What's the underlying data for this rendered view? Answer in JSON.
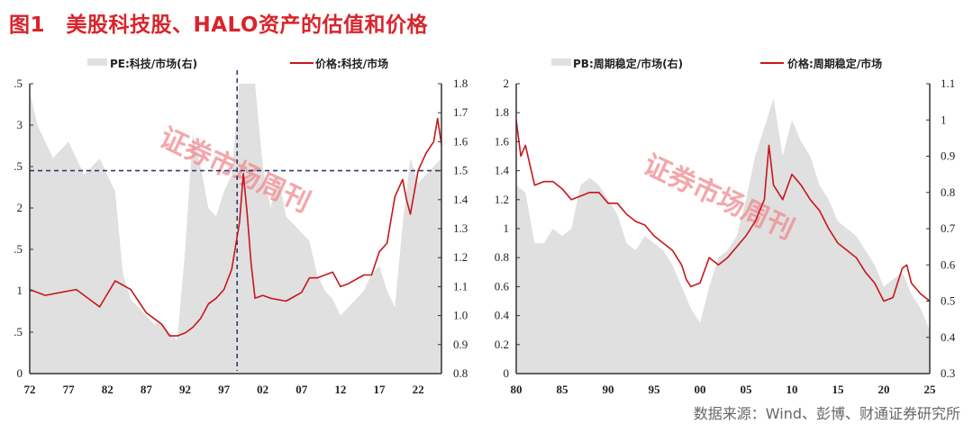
{
  "figure": {
    "title": "图1　美股科技股、HALO资产的估值和价格",
    "source": "数据来源：Wind、彭博、财通证券研究所",
    "watermark": "证券市场周刊"
  },
  "colors": {
    "title": "#d9242b",
    "price_line": "#c8161d",
    "valuation_area": "#e0e0e0",
    "reference_line": "#2d3e6b",
    "watermark": "#f08a8f"
  },
  "chart_data": [
    {
      "type": "area+line",
      "title": "美股科技股",
      "legend": [
        "PE:科技/市场(右)",
        "价格:科技/市场"
      ],
      "legend_position": "top",
      "xlabel": "",
      "x_ticks": [
        "72",
        "77",
        "82",
        "87",
        "92",
        "97",
        "02",
        "07",
        "12",
        "17",
        "22"
      ],
      "left_axis": {
        "ticks": [
          ".5",
          "3",
          ".5",
          "2",
          ".5",
          "1",
          ".5",
          "0"
        ],
        "full_values": [
          3.5,
          3,
          2.5,
          2,
          1.5,
          1,
          0.5,
          0
        ],
        "ylim": [
          0,
          3.5
        ],
        "note": "labels truncated at left edge"
      },
      "right_axis": {
        "ticks": [
          "1.8",
          "1.7",
          "1.6",
          "1.5",
          "1.4",
          "1.3",
          "1.2",
          "1.1",
          "1.0",
          "0.9",
          "0.8"
        ],
        "ylim": [
          0.8,
          1.8
        ]
      },
      "reference_lines": {
        "horizontal_right_axis": 1.5,
        "vertical_x": "1998/99"
      },
      "series": [
        {
          "name": "价格:科技/市场",
          "axis": "right",
          "x": [
            1972,
            1974,
            1976,
            1978,
            1980,
            1981,
            1983,
            1985,
            1986,
            1987,
            1988,
            1989,
            1990,
            1991,
            1992,
            1993,
            1994,
            1995,
            1996,
            1997,
            1998,
            1999,
            1999.5,
            2000,
            2000.5,
            2001,
            2002,
            2003,
            2005,
            2007,
            2008,
            2009,
            2010,
            2011,
            2012,
            2013,
            2015,
            2016,
            2017,
            2018,
            2019,
            2020,
            2020.5,
            2021,
            2022,
            2023,
            2024,
            2024.5,
            2025
          ],
          "values": [
            1.09,
            1.07,
            1.08,
            1.09,
            1.05,
            1.03,
            1.12,
            1.09,
            1.05,
            1.01,
            0.99,
            0.97,
            0.93,
            0.93,
            0.94,
            0.96,
            0.99,
            1.04,
            1.06,
            1.09,
            1.16,
            1.32,
            1.49,
            1.35,
            1.18,
            1.06,
            1.07,
            1.06,
            1.05,
            1.08,
            1.13,
            1.13,
            1.14,
            1.15,
            1.1,
            1.11,
            1.14,
            1.14,
            1.22,
            1.25,
            1.41,
            1.47,
            1.4,
            1.35,
            1.5,
            1.56,
            1.6,
            1.68,
            1.59
          ]
        },
        {
          "name": "PE:科技/市场(右)",
          "axis": "left",
          "x": [
            1972,
            1973,
            1975,
            1977,
            1979,
            1981,
            1983,
            1984,
            1985,
            1986,
            1987,
            1988,
            1989,
            1990,
            1991,
            1992,
            1993,
            1994,
            1995,
            1996,
            1997,
            1998,
            1999,
            2000,
            2001,
            2002,
            2003,
            2004,
            2005,
            2006,
            2007,
            2008,
            2009,
            2010,
            2011,
            2012,
            2013,
            2014,
            2015,
            2016,
            2017,
            2018,
            2019,
            2020,
            2021,
            2022,
            2023,
            2024,
            2025
          ],
          "values": [
            3.4,
            3.0,
            2.6,
            2.8,
            2.4,
            2.6,
            2.2,
            1.2,
            0.9,
            0.8,
            0.7,
            0.6,
            0.6,
            0.5,
            0.4,
            1.5,
            2.9,
            2.5,
            2.0,
            1.9,
            2.2,
            2.4,
            3.5,
            3.5,
            3.5,
            2.5,
            2.0,
            2.4,
            1.9,
            1.8,
            1.7,
            1.6,
            1.2,
            1.0,
            0.9,
            0.7,
            0.8,
            0.9,
            1.0,
            1.2,
            1.3,
            1.0,
            0.8,
            1.8,
            2.6,
            2.3,
            2.4,
            2.5,
            2.6
          ]
        }
      ]
    },
    {
      "type": "area+line",
      "title": "HALO资产(周期稳定)",
      "legend": [
        "PB:周期稳定/市场(右)",
        "价格:周期稳定/市场"
      ],
      "legend_position": "top",
      "xlabel": "",
      "x_ticks": [
        "80",
        "85",
        "90",
        "95",
        "00",
        "05",
        "10",
        "15",
        "20",
        "25"
      ],
      "left_axis": {
        "ticks": [
          "2",
          "1.8",
          "1.6",
          "1.4",
          "1.2",
          "1",
          "0.8",
          "0.6",
          "0.4",
          "0.2",
          "0"
        ],
        "ylim": [
          0,
          2
        ]
      },
      "right_axis": {
        "ticks": [
          "1.1",
          "1",
          "0.9",
          "0.8",
          "0.7",
          "0.6",
          "0.5",
          "0.4",
          "0.3"
        ],
        "ylim": [
          0.3,
          1.1
        ]
      },
      "series": [
        {
          "name": "价格:周期稳定/市场",
          "axis": "right",
          "x": [
            1980,
            1980.5,
            1981,
            1982,
            1983,
            1984,
            1985,
            1986,
            1987,
            1988,
            1989,
            1990,
            1991,
            1992,
            1993,
            1994,
            1995,
            1996,
            1997,
            1998,
            1998.5,
            1999,
            2000,
            2001,
            2002,
            2003,
            2004,
            2005,
            2006,
            2007,
            2007.5,
            2008,
            2009,
            2010,
            2011,
            2012,
            2013,
            2014,
            2015,
            2016,
            2017,
            2018,
            2019,
            2020,
            2021,
            2022,
            2022.5,
            2023,
            2024,
            2025
          ],
          "values": [
            1.0,
            0.9,
            0.93,
            0.82,
            0.83,
            0.83,
            0.81,
            0.78,
            0.79,
            0.8,
            0.8,
            0.77,
            0.77,
            0.74,
            0.72,
            0.71,
            0.68,
            0.66,
            0.64,
            0.6,
            0.56,
            0.54,
            0.55,
            0.62,
            0.6,
            0.62,
            0.65,
            0.68,
            0.72,
            0.78,
            0.93,
            0.82,
            0.78,
            0.85,
            0.82,
            0.78,
            0.75,
            0.7,
            0.66,
            0.64,
            0.62,
            0.58,
            0.55,
            0.5,
            0.51,
            0.59,
            0.6,
            0.55,
            0.52,
            0.5
          ]
        },
        {
          "name": "PB:周期稳定/市场(右)",
          "axis": "left",
          "x": [
            1980,
            1981,
            1982,
            1983,
            1984,
            1985,
            1986,
            1987,
            1988,
            1989,
            1990,
            1991,
            1992,
            1993,
            1994,
            1995,
            1996,
            1997,
            1998,
            1999,
            2000,
            2001,
            2002,
            2003,
            2004,
            2005,
            2006,
            2007,
            2008,
            2009,
            2010,
            2011,
            2012,
            2013,
            2014,
            2015,
            2016,
            2017,
            2018,
            2019,
            2020,
            2021,
            2022,
            2023,
            2024,
            2025
          ],
          "values": [
            1.3,
            1.25,
            0.9,
            0.9,
            1.0,
            0.95,
            1.0,
            1.3,
            1.35,
            1.3,
            1.2,
            1.1,
            0.9,
            0.85,
            0.95,
            0.9,
            0.85,
            0.75,
            0.6,
            0.45,
            0.35,
            0.6,
            0.8,
            0.85,
            0.95,
            1.2,
            1.5,
            1.7,
            1.9,
            1.5,
            1.75,
            1.6,
            1.5,
            1.3,
            1.2,
            1.05,
            1.0,
            0.95,
            0.85,
            0.75,
            0.6,
            0.65,
            0.7,
            0.55,
            0.45,
            0.3
          ]
        }
      ]
    }
  ]
}
